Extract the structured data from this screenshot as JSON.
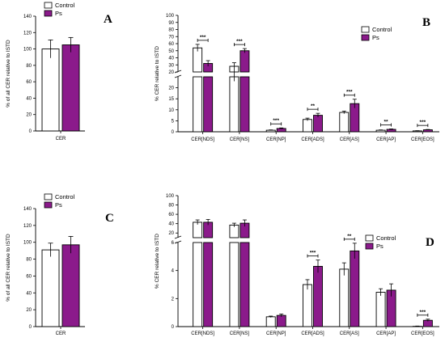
{
  "colors": {
    "control": "#ffffff",
    "ps": "#8b1a8b",
    "axis": "#000000"
  },
  "chart_data": [
    {
      "id": "A",
      "type": "bar",
      "panel_label": "A",
      "ylabel": "% of all CER relative to ISTD",
      "ylim": [
        0,
        140
      ],
      "yticks": [
        0,
        20,
        40,
        60,
        80,
        100,
        120,
        140
      ],
      "categories": [
        "CER"
      ],
      "legend": [
        "Control",
        "Ps"
      ],
      "legend_position": "top-left",
      "series": [
        {
          "name": "Control",
          "values": [
            100
          ],
          "errors": [
            11
          ]
        },
        {
          "name": "Ps",
          "values": [
            105
          ],
          "errors": [
            9
          ]
        }
      ],
      "significance": []
    },
    {
      "id": "B",
      "type": "bar",
      "panel_label": "B",
      "ylabel": "% CER relative to ISTD",
      "axis_break": true,
      "ylim_lower": [
        0,
        25
      ],
      "ylim_upper": [
        20,
        100
      ],
      "yticks_lower": [
        0,
        5,
        10,
        15,
        20
      ],
      "yticks_upper": [
        20,
        30,
        40,
        50,
        60,
        70,
        80,
        90,
        100
      ],
      "categories": [
        "CER[NDS]",
        "CER[NS]",
        "CER[NP]",
        "CER[ADS]",
        "CER[AS]",
        "CER[AP]",
        "CER[EOS]"
      ],
      "legend": [
        "Control",
        "Ps"
      ],
      "legend_position": "top-right",
      "series": [
        {
          "name": "Control",
          "values": [
            54,
            28,
            0.7,
            5.6,
            8.8,
            0.7,
            0.4
          ],
          "errors": [
            5,
            5,
            0.15,
            0.6,
            0.6,
            0.15,
            0.1
          ]
        },
        {
          "name": "Ps",
          "values": [
            32,
            50,
            1.5,
            7.5,
            12.8,
            1.1,
            0.9
          ],
          "errors": [
            4,
            3,
            0.25,
            0.9,
            2,
            0.2,
            0.15
          ]
        }
      ],
      "significance": [
        "***",
        "***",
        "***",
        "**",
        "***",
        "**",
        "***"
      ]
    },
    {
      "id": "C",
      "type": "bar",
      "panel_label": "C",
      "ylabel": "% of all CER relative to ISTD",
      "ylim": [
        0,
        140
      ],
      "yticks": [
        0,
        20,
        40,
        60,
        80,
        100,
        120,
        140
      ],
      "categories": [
        "CER"
      ],
      "legend": [
        "Control",
        "Ps"
      ],
      "legend_position": "top-left",
      "series": [
        {
          "name": "Control",
          "values": [
            91
          ],
          "errors": [
            8
          ]
        },
        {
          "name": "Ps",
          "values": [
            97
          ],
          "errors": [
            10
          ]
        }
      ],
      "significance": []
    },
    {
      "id": "D",
      "type": "bar",
      "panel_label": "D",
      "ylabel": "% CER relative to ISTD",
      "axis_break": true,
      "ylim_lower": [
        0,
        6
      ],
      "ylim_upper": [
        10,
        100
      ],
      "yticks_lower": [
        0,
        2,
        4,
        6
      ],
      "yticks_upper": [
        20,
        40,
        60,
        80,
        100
      ],
      "categories": [
        "CER[NDS]",
        "CER[NS]",
        "CER[NP]",
        "CER[ADS]",
        "CER[AS]",
        "CER[AP]",
        "CER[EOS]"
      ],
      "legend": [
        "Control",
        "Ps"
      ],
      "legend_position": "top-right",
      "series": [
        {
          "name": "Control",
          "values": [
            43,
            37,
            0.7,
            3.0,
            4.1,
            2.45,
            0.02
          ],
          "errors": [
            5,
            4,
            0.05,
            0.35,
            0.45,
            0.25,
            0.02
          ]
        },
        {
          "name": "Ps",
          "values": [
            43,
            41,
            0.8,
            4.3,
            5.4,
            2.6,
            0.45
          ],
          "errors": [
            6,
            7,
            0.1,
            0.45,
            0.55,
            0.45,
            0.08
          ]
        }
      ],
      "significance": [
        "",
        "",
        "",
        "***",
        "**",
        "",
        "***"
      ]
    }
  ]
}
